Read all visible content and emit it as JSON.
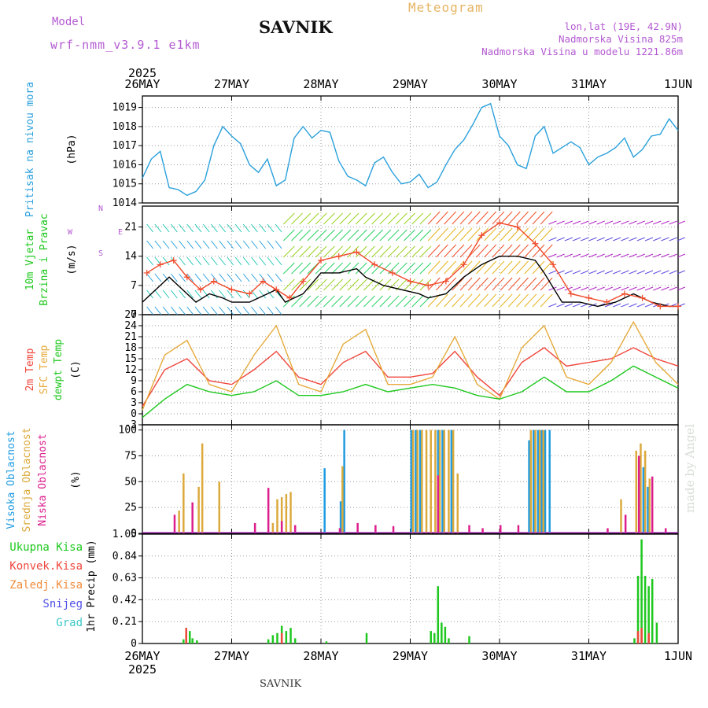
{
  "header": {
    "title": "SAVNIK",
    "meteogram": "Meteogram",
    "model_label": "Model",
    "model_value": "wrf-nmm_v3.9.1  e1km",
    "location": "lon,lat (19E, 42.9N)",
    "elevation": "Nadmorska Visina 825m",
    "model_elevation": "Nadmorska Visina u modelu 1221.86m"
  },
  "footer": {
    "station": "SAVNIK",
    "credit": "made by Angel"
  },
  "time_axis": {
    "year": "2025",
    "ticks": [
      "26MAY",
      "27MAY",
      "28MAY",
      "29MAY",
      "30MAY",
      "31MAY",
      "1JUN"
    ]
  },
  "chart_data": [
    {
      "type": "line",
      "panel": "pressure",
      "ylabel": [
        "Pritisak na nivou mora",
        "(hPa)"
      ],
      "ylim": [
        1014,
        1019.6
      ],
      "yticks": [
        "1014",
        "1015",
        "1016",
        "1017",
        "1018",
        "1019"
      ],
      "grid": true,
      "series": [
        {
          "name": "Pritisak na nivou mora",
          "color": "#2aa0dc",
          "x": [
            0,
            0.1,
            0.2,
            0.3,
            0.4,
            0.5,
            0.6,
            0.7,
            0.8,
            0.9,
            1.0,
            1.1,
            1.2,
            1.3,
            1.4,
            1.5,
            1.6,
            1.7,
            1.8,
            1.9,
            2.0,
            2.1,
            2.2,
            2.3,
            2.4,
            2.5,
            2.6,
            2.7,
            2.8,
            2.9,
            3.0,
            3.1,
            3.2,
            3.3,
            3.4,
            3.5,
            3.6,
            3.7,
            3.8,
            3.9,
            4.0,
            4.1,
            4.2,
            4.3,
            4.4,
            4.5,
            4.6,
            4.7,
            4.8,
            4.9,
            5.0,
            5.1,
            5.2,
            5.3,
            5.4,
            5.5,
            5.6,
            5.7,
            5.8,
            5.9,
            6.0
          ],
          "values": [
            1015.3,
            1016.3,
            1016.7,
            1014.8,
            1014.7,
            1014.4,
            1014.6,
            1015.2,
            1017.0,
            1018.0,
            1017.5,
            1017.1,
            1016.0,
            1015.6,
            1016.3,
            1014.9,
            1015.2,
            1017.4,
            1018.0,
            1017.4,
            1017.8,
            1017.7,
            1016.2,
            1015.4,
            1015.2,
            1014.9,
            1016.1,
            1016.4,
            1015.6,
            1015.0,
            1015.1,
            1015.5,
            1014.8,
            1015.1,
            1016.0,
            1016.8,
            1017.3,
            1018.1,
            1019.0,
            1019.2,
            1017.5,
            1017.0,
            1016.0,
            1015.8,
            1017.5,
            1018.0,
            1016.6,
            1016.9,
            1017.2,
            1016.9,
            1016.0,
            1016.4,
            1016.6,
            1016.9,
            1017.4,
            1016.4,
            1016.8,
            1017.5,
            1017.6,
            1018.4,
            1017.8
          ]
        }
      ]
    },
    {
      "type": "line",
      "panel": "wind",
      "ylabel": [
        "10m Vjetar",
        "Brzina i Pravac",
        "(m/s)"
      ],
      "compass": {
        "n": "N",
        "s": "S",
        "w": "W",
        "e": "E"
      },
      "ylim": [
        0,
        26
      ],
      "yticks": [
        "0",
        "7",
        "14",
        "21"
      ],
      "grid": true,
      "series": [
        {
          "name": "wind speed",
          "color": "#000000",
          "x": [
            0,
            0.2,
            0.3,
            0.45,
            0.6,
            0.75,
            0.9,
            1.0,
            1.2,
            1.4,
            1.5,
            1.6,
            1.8,
            2.0,
            2.2,
            2.4,
            2.5,
            2.7,
            2.9,
            3.1,
            3.2,
            3.4,
            3.6,
            3.8,
            4.0,
            4.2,
            4.4,
            4.5,
            4.7,
            4.9,
            5.1,
            5.3,
            5.5,
            5.7,
            5.9,
            6.0
          ],
          "values": [
            3,
            7,
            9,
            6,
            3,
            5,
            4,
            3,
            3,
            5,
            6,
            3,
            5,
            10,
            10,
            11,
            9,
            7,
            6,
            5,
            4,
            5,
            9,
            12,
            14,
            14,
            13,
            10,
            3,
            3,
            2,
            3,
            5,
            3,
            2,
            2
          ]
        },
        {
          "name": "gust",
          "color": "#f04a2a",
          "x": [
            0.05,
            0.2,
            0.35,
            0.5,
            0.65,
            0.8,
            1.0,
            1.2,
            1.35,
            1.5,
            1.65,
            1.8,
            2.0,
            2.2,
            2.4,
            2.6,
            2.8,
            3.0,
            3.2,
            3.4,
            3.6,
            3.8,
            4.0,
            4.2,
            4.4,
            4.6,
            4.8,
            5.0,
            5.2,
            5.4,
            5.6,
            5.8,
            6.0
          ],
          "values": [
            10,
            12,
            13,
            9,
            6,
            8,
            6,
            5,
            8,
            6,
            4,
            8,
            13,
            14,
            15,
            12,
            10,
            8,
            7,
            8,
            12,
            19,
            22,
            21,
            17,
            12,
            5,
            4,
            3,
            5,
            4,
            2,
            2
          ]
        }
      ]
    },
    {
      "type": "line",
      "panel": "temperature",
      "ylabel": [
        "2m Temp",
        "SFC Temp",
        "dewpt Temp",
        "(C)"
      ],
      "ylim": [
        -3,
        27
      ],
      "yticks": [
        "-3",
        "0",
        "3",
        "6",
        "9",
        "12",
        "15",
        "18",
        "21",
        "24",
        "27"
      ],
      "grid": true,
      "series": [
        {
          "name": "2m Temp",
          "color": "#f0463c",
          "x": [
            0,
            0.25,
            0.5,
            0.75,
            1.0,
            1.25,
            1.5,
            1.75,
            2.0,
            2.25,
            2.5,
            2.75,
            3.0,
            3.25,
            3.5,
            3.75,
            4.0,
            4.25,
            4.5,
            4.75,
            5.0,
            5.25,
            5.5,
            5.75,
            6.0
          ],
          "values": [
            2,
            12,
            15,
            9,
            8,
            12,
            17,
            10,
            8,
            14,
            17,
            10,
            10,
            11,
            17,
            10,
            5,
            14,
            18,
            13,
            14,
            15,
            18,
            15,
            13
          ]
        },
        {
          "name": "SFC Temp",
          "color": "#e6aa3c",
          "x": [
            0,
            0.25,
            0.5,
            0.75,
            1.0,
            1.25,
            1.5,
            1.75,
            2.0,
            2.25,
            2.5,
            2.75,
            3.0,
            3.25,
            3.5,
            3.75,
            4.0,
            4.25,
            4.5,
            4.75,
            5.0,
            5.25,
            5.5,
            5.75,
            6.0
          ],
          "values": [
            1,
            16,
            20,
            8,
            6,
            16,
            24,
            8,
            6,
            19,
            23,
            8,
            8,
            10,
            21,
            8,
            4,
            18,
            24,
            10,
            8,
            14,
            25,
            14,
            8
          ]
        },
        {
          "name": "dewpt Temp",
          "color": "#1ec81e",
          "x": [
            0,
            0.25,
            0.5,
            0.75,
            1.0,
            1.25,
            1.5,
            1.75,
            2.0,
            2.25,
            2.5,
            2.75,
            3.0,
            3.25,
            3.5,
            3.75,
            4.0,
            4.25,
            4.5,
            4.75,
            5.0,
            5.25,
            5.5,
            5.75,
            6.0
          ],
          "values": [
            -1,
            4,
            8,
            6,
            5,
            6,
            9,
            5,
            5,
            6,
            8,
            6,
            7,
            8,
            7,
            5,
            4,
            6,
            10,
            6,
            6,
            9,
            13,
            10,
            7
          ]
        }
      ]
    },
    {
      "type": "bar",
      "panel": "cloud",
      "ylabel": [
        "Visoka Oblacnost",
        "Srednja Oblacnost",
        "Niska Oblacnost",
        "(%)"
      ],
      "ylim": [
        0,
        105
      ],
      "yticks": [
        "0",
        "25",
        "50",
        "75",
        "100"
      ],
      "grid": true,
      "series": [
        {
          "name": "Visoka Oblacnost",
          "color": "#1e9be1",
          "x": [
            2.03,
            2.21,
            2.25,
            3.0,
            3.05,
            3.1,
            3.3,
            3.35,
            3.45,
            4.32,
            4.37,
            4.42,
            4.46,
            4.5,
            4.55,
            5.6,
            5.65
          ],
          "values": [
            63,
            31,
            100,
            100,
            100,
            100,
            100,
            100,
            100,
            90,
            100,
            100,
            100,
            100,
            100,
            64,
            45
          ]
        },
        {
          "name": "Srednja Oblacnost",
          "color": "#dcaa3c",
          "x": [
            0.4,
            0.45,
            0.62,
            0.66,
            0.85,
            1.45,
            1.5,
            1.55,
            1.6,
            1.65,
            2.23,
            3.02,
            3.07,
            3.12,
            3.17,
            3.22,
            3.27,
            3.32,
            3.37,
            3.42,
            3.47,
            3.52,
            4.34,
            4.39,
            4.44,
            4.48,
            5.35,
            5.52,
            5.57,
            5.62,
            5.67
          ],
          "values": [
            22,
            58,
            45,
            87,
            50,
            10,
            33,
            35,
            38,
            40,
            65,
            100,
            100,
            100,
            100,
            100,
            100,
            100,
            100,
            100,
            100,
            58,
            100,
            100,
            100,
            100,
            33,
            80,
            87,
            80,
            53
          ]
        },
        {
          "name": "Niska Oblacnost",
          "color": "#dc1e8c",
          "x": [
            0.35,
            0.55,
            1.25,
            1.4,
            1.55,
            1.7,
            2.2,
            2.4,
            2.6,
            2.8,
            3.3,
            3.65,
            3.8,
            4.0,
            4.2,
            5.2,
            5.4,
            5.55,
            5.7,
            5.85
          ],
          "values": [
            18,
            30,
            10,
            44,
            12,
            8,
            5,
            10,
            8,
            7,
            56,
            8,
            5,
            8,
            8,
            5,
            18,
            75,
            55,
            5
          ]
        }
      ]
    },
    {
      "type": "bar",
      "panel": "precipitation",
      "ylabel": [
        "Ukupna Kisa",
        "Konvek.Kisa",
        "Zaledj.Kisa",
        "Snijeg",
        "Grad",
        "1hr Precip (mm)"
      ],
      "ylim": [
        0,
        1.05
      ],
      "yticks": [
        "0",
        "0.21",
        "0.42",
        "0.63",
        "0.84",
        "1.05"
      ],
      "grid": true,
      "series": [
        {
          "name": "Ukupna Kisa",
          "color": "#1ec81e",
          "x": [
            0.45,
            0.48,
            0.52,
            0.55,
            0.6,
            1.4,
            1.45,
            1.5,
            1.55,
            1.6,
            1.65,
            1.7,
            2.05,
            2.5,
            3.22,
            3.26,
            3.3,
            3.34,
            3.38,
            3.42,
            3.65,
            5.5,
            5.54,
            5.58,
            5.62,
            5.66,
            5.7,
            5.75
          ],
          "values": [
            0.04,
            0.15,
            0.12,
            0.05,
            0.03,
            0.04,
            0.08,
            0.1,
            0.17,
            0.12,
            0.15,
            0.05,
            0.02,
            0.1,
            0.12,
            0.1,
            0.55,
            0.2,
            0.16,
            0.05,
            0.07,
            0.05,
            0.65,
            1.0,
            0.65,
            0.55,
            0.62,
            0.2
          ]
        },
        {
          "name": "Konvek.Kisa",
          "color": "#f0463c",
          "x": [
            0.48,
            1.55,
            5.54,
            5.58,
            5.66
          ],
          "values": [
            0.15,
            0.1,
            0.12,
            0.15,
            0.1
          ]
        },
        {
          "name": "Zaledj.Kisa",
          "color": "#f08c3c",
          "x": [],
          "values": []
        },
        {
          "name": "Snijeg",
          "color": "#5050e6",
          "x": [],
          "values": []
        },
        {
          "name": "Grad",
          "color": "#3cc8c8",
          "x": [],
          "values": []
        }
      ]
    }
  ]
}
